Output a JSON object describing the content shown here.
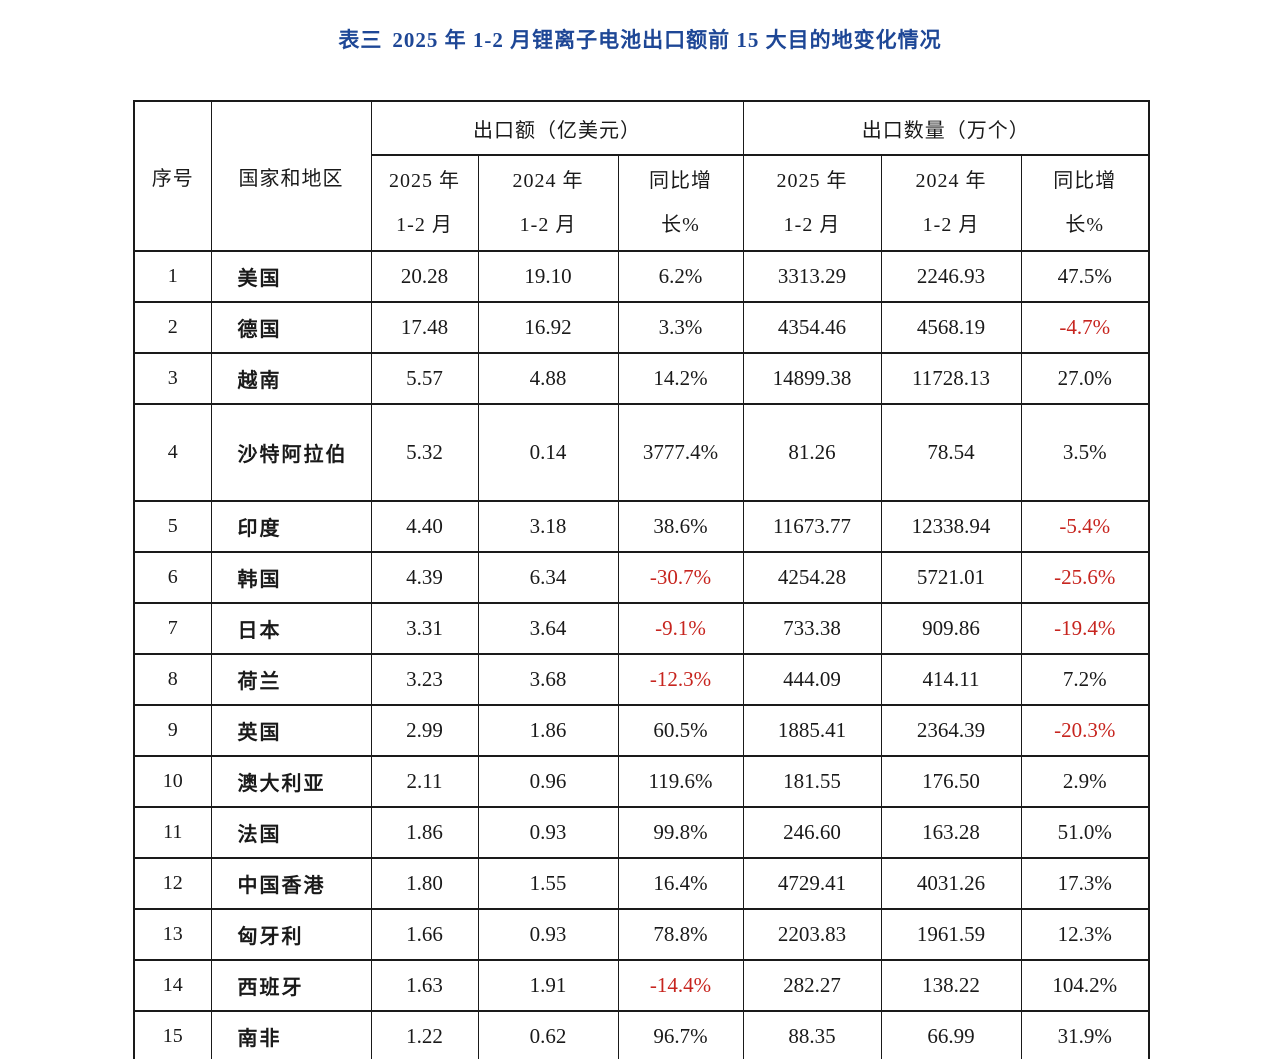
{
  "title": {
    "prefix": "表三",
    "text": "2025 年 1-2 月锂离子电池出口额前 15 大目的地变化情况"
  },
  "colors": {
    "title_blue": "#1e4796",
    "negative_red": "#c7251f",
    "text": "#1a1a1a"
  },
  "table": {
    "headers": {
      "index": "序号",
      "country": "国家和地区",
      "export_value_group": "出口额（亿美元）",
      "export_quantity_group": "出口数量（万个）"
    },
    "sub_headers": [
      {
        "l1": "2025 年",
        "l2": "1-2 月"
      },
      {
        "l1": "2024 年",
        "l2": "1-2 月"
      },
      {
        "l1": "同比增",
        "l2": "长%"
      },
      {
        "l1": "2025 年",
        "l2": "1-2 月"
      },
      {
        "l1": "2024 年",
        "l2": "1-2 月"
      },
      {
        "l1": "同比增",
        "l2": "长%"
      }
    ],
    "rows": [
      {
        "no": "1",
        "country": "美国",
        "val_2025": "20.28",
        "val_2024": "19.10",
        "val_yoy": "6.2%",
        "qty_2025": "3313.29",
        "qty_2024": "2246.93",
        "qty_yoy": "47.5%"
      },
      {
        "no": "2",
        "country": "德国",
        "val_2025": "17.48",
        "val_2024": "16.92",
        "val_yoy": "3.3%",
        "qty_2025": "4354.46",
        "qty_2024": "4568.19",
        "qty_yoy": "-4.7%"
      },
      {
        "no": "3",
        "country": "越南",
        "val_2025": "5.57",
        "val_2024": "4.88",
        "val_yoy": "14.2%",
        "qty_2025": "14899.38",
        "qty_2024": "11728.13",
        "qty_yoy": "27.0%"
      },
      {
        "no": "4",
        "country": "沙特阿拉伯",
        "val_2025": "5.32",
        "val_2024": "0.14",
        "val_yoy": "3777.4%",
        "qty_2025": "81.26",
        "qty_2024": "78.54",
        "qty_yoy": "3.5%"
      },
      {
        "no": "5",
        "country": "印度",
        "val_2025": "4.40",
        "val_2024": "3.18",
        "val_yoy": "38.6%",
        "qty_2025": "11673.77",
        "qty_2024": "12338.94",
        "qty_yoy": "-5.4%"
      },
      {
        "no": "6",
        "country": "韩国",
        "val_2025": "4.39",
        "val_2024": "6.34",
        "val_yoy": "-30.7%",
        "qty_2025": "4254.28",
        "qty_2024": "5721.01",
        "qty_yoy": "-25.6%"
      },
      {
        "no": "7",
        "country": "日本",
        "val_2025": "3.31",
        "val_2024": "3.64",
        "val_yoy": "-9.1%",
        "qty_2025": "733.38",
        "qty_2024": "909.86",
        "qty_yoy": "-19.4%"
      },
      {
        "no": "8",
        "country": "荷兰",
        "val_2025": "3.23",
        "val_2024": "3.68",
        "val_yoy": "-12.3%",
        "qty_2025": "444.09",
        "qty_2024": "414.11",
        "qty_yoy": "7.2%"
      },
      {
        "no": "9",
        "country": "英国",
        "val_2025": "2.99",
        "val_2024": "1.86",
        "val_yoy": "60.5%",
        "qty_2025": "1885.41",
        "qty_2024": "2364.39",
        "qty_yoy": "-20.3%"
      },
      {
        "no": "10",
        "country": "澳大利亚",
        "val_2025": "2.11",
        "val_2024": "0.96",
        "val_yoy": "119.6%",
        "qty_2025": "181.55",
        "qty_2024": "176.50",
        "qty_yoy": "2.9%"
      },
      {
        "no": "11",
        "country": "法国",
        "val_2025": "1.86",
        "val_2024": "0.93",
        "val_yoy": "99.8%",
        "qty_2025": "246.60",
        "qty_2024": "163.28",
        "qty_yoy": "51.0%"
      },
      {
        "no": "12",
        "country": "中国香港",
        "val_2025": "1.80",
        "val_2024": "1.55",
        "val_yoy": "16.4%",
        "qty_2025": "4729.41",
        "qty_2024": "4031.26",
        "qty_yoy": "17.3%"
      },
      {
        "no": "13",
        "country": "匈牙利",
        "val_2025": "1.66",
        "val_2024": "0.93",
        "val_yoy": "78.8%",
        "qty_2025": "2203.83",
        "qty_2024": "1961.59",
        "qty_yoy": "12.3%"
      },
      {
        "no": "14",
        "country": "西班牙",
        "val_2025": "1.63",
        "val_2024": "1.91",
        "val_yoy": "-14.4%",
        "qty_2025": "282.27",
        "qty_2024": "138.22",
        "qty_yoy": "104.2%"
      },
      {
        "no": "15",
        "country": "南非",
        "val_2025": "1.22",
        "val_2024": "0.62",
        "val_yoy": "96.7%",
        "qty_2025": "88.35",
        "qty_2024": "66.99",
        "qty_yoy": "31.9%"
      }
    ]
  }
}
